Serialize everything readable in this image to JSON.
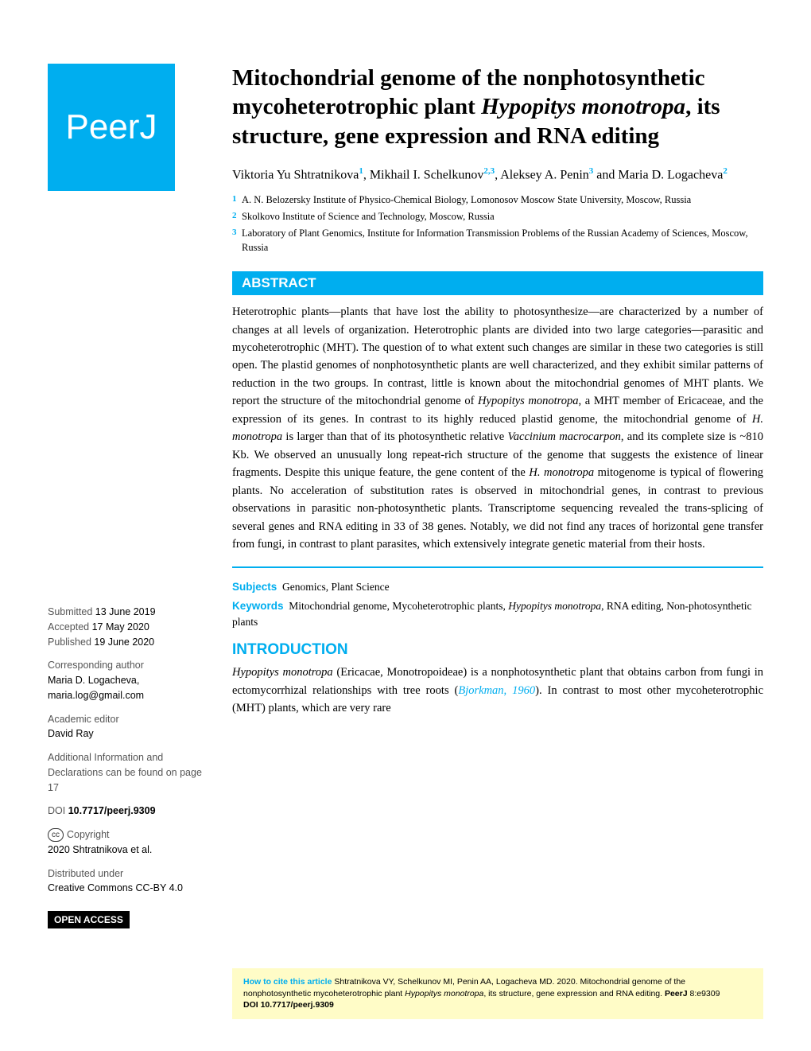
{
  "logo_text": "PeerJ",
  "title_pre": "Mitochondrial genome of the nonphotosynthetic mycoheterotrophic plant ",
  "title_italic": "Hypopitys monotropa",
  "title_post": ", its structure, gene expression and RNA editing",
  "authors": {
    "a1_name": "Viktoria Yu Shtratnikova",
    "a1_sup": "1",
    "a2_name": "Mikhail I. Schelkunov",
    "a2_sup": "2,3",
    "a3_name": "Aleksey A. Penin",
    "a3_sup": "3",
    "and": "and ",
    "a4_name": "Maria D. Logacheva",
    "a4_sup": "2"
  },
  "affiliations": {
    "n1": "1",
    "t1": "A. N. Belozersky Institute of Physico-Chemical Biology, Lomonosov Moscow State University, Moscow, Russia",
    "n2": "2",
    "t2": "Skolkovo Institute of Science and Technology, Moscow, Russia",
    "n3": "3",
    "t3": "Laboratory of Plant Genomics, Institute for Information Transmission Problems of the Russian Academy of Sciences, Moscow, Russia"
  },
  "abstract_header": "ABSTRACT",
  "abstract": {
    "p1": "Heterotrophic plants—plants that have lost the ability to photosynthesize—are characterized by a number of changes at all levels of organization. Heterotrophic plants are divided into two large categories—parasitic and mycoheterotrophic (MHT). The question of to what extent such changes are similar in these two categories is still open. The plastid genomes of nonphotosynthetic plants are well characterized, and they exhibit similar patterns of reduction in the two groups. In contrast, little is known about the mitochondrial genomes of MHT plants. We report the structure of the mitochondrial genome of ",
    "i1": "Hypopitys monotropa",
    "p2": ", a MHT member of Ericaceae, and the expression of its genes. In contrast to its highly reduced plastid genome, the mitochondrial genome of ",
    "i2": "H. monotropa",
    "p3": " is larger than that of its photosynthetic relative ",
    "i3": "Vaccinium macrocarpon",
    "p4": ", and its complete size is ~810 Kb. We observed an unusually long repeat-rich structure of the genome that suggests the existence of linear fragments. Despite this unique feature, the gene content of the ",
    "i4": "H. monotropa",
    "p5": " mitogenome is typical of flowering plants. No acceleration of substitution rates is observed in mitochondrial genes, in contrast to previous observations in parasitic non-photosynthetic plants. Transcriptome sequencing revealed the trans-splicing of several genes and RNA editing in 33 of 38 genes. Notably, we did not find any traces of horizontal gene transfer from fungi, in contrast to plant parasites, which extensively integrate genetic material from their hosts."
  },
  "subjects_label": "Subjects",
  "subjects_text": "Genomics, Plant Science",
  "keywords_label": "Keywords",
  "keywords_pre": "Mitochondrial genome, Mycoheterotrophic plants, ",
  "keywords_italic": "Hypopitys monotropa",
  "keywords_post": ", RNA editing, Non-photosynthetic plants",
  "intro_header": "INTRODUCTION",
  "intro": {
    "i1": "Hypopitys monotropa",
    "p1": " (Ericacae, Monotropoideae) is a nonphotosynthetic plant that obtains carbon from fungi in ectomycorrhizal relationships with tree roots (",
    "ref1": "Bjorkman, 1960",
    "p2": "). In contrast to most other mycoheterotrophic (MHT) plants, which are very rare"
  },
  "meta": {
    "submitted_label": "Submitted ",
    "submitted_date": "13 June 2019",
    "accepted_label": "Accepted ",
    "accepted_date": "17 May 2020",
    "published_label": "Published ",
    "published_date": "19 June 2020",
    "corr_label": "Corresponding author",
    "corr_name": "Maria D. Logacheva,",
    "corr_email": "maria.log@gmail.com",
    "editor_label": "Academic editor",
    "editor_name": "David Ray",
    "addl_info": "Additional Information and Declarations can be found on page 17",
    "doi_label": "DOI ",
    "doi_value": "10.7717/peerj.9309",
    "cc_symbol": "cc",
    "copyright_label": "Copyright",
    "copyright_text": "2020 Shtratnikova et al.",
    "distributed_label": "Distributed under",
    "distributed_text": "Creative Commons CC-BY 4.0",
    "open_access": "OPEN ACCESS"
  },
  "footer": {
    "cite_label": "How to cite this article",
    "cite_text1": " Shtratnikova VY, Schelkunov MI, Penin AA, Logacheva MD. 2020. Mitochondrial genome of the nonphotosynthetic mycoheterotrophic plant ",
    "cite_italic": "Hypopitys monotropa",
    "cite_text2": ", its structure, gene expression and RNA editing. ",
    "cite_journal": "PeerJ",
    "cite_vol": " 8:e9309 ",
    "cite_doi_label": "DOI ",
    "cite_doi": "10.7717/peerj.9309"
  },
  "colors": {
    "brand": "#00aeef",
    "footer_bg": "#fffcc7"
  }
}
